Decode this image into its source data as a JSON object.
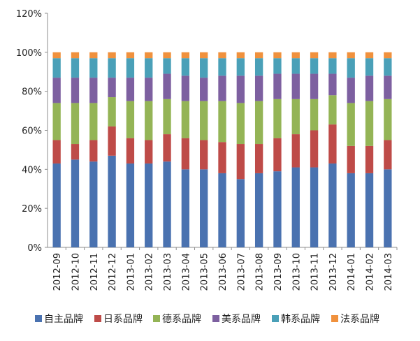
{
  "chart_data": {
    "type": "bar",
    "stacked": true,
    "percent": true,
    "categories": [
      "2012-09",
      "2012-10",
      "2012-11",
      "2012-12",
      "2013-01",
      "2013-02",
      "2013-03",
      "2013-04",
      "2013-05",
      "2013-06",
      "2013-07",
      "2013-08",
      "2013-09",
      "2013-10",
      "2013-11",
      "2013-12",
      "2014-01",
      "2014-02",
      "2014-03"
    ],
    "series": [
      {
        "name": "自主品牌",
        "color": "#4a72b0",
        "values": [
          43,
          45,
          44,
          47,
          43,
          43,
          44,
          40,
          40,
          38,
          35,
          38,
          39,
          41,
          41,
          43,
          38,
          38,
          40
        ]
      },
      {
        "name": "日系品牌",
        "color": "#be4b48",
        "values": [
          12,
          8,
          11,
          15,
          13,
          12,
          14,
          16,
          15,
          16,
          18,
          15,
          17,
          17,
          19,
          20,
          14,
          14,
          15
        ]
      },
      {
        "name": "德系品牌",
        "color": "#94b456",
        "values": [
          19,
          21,
          19,
          15,
          19,
          20,
          18,
          19,
          20,
          21,
          21,
          22,
          20,
          18,
          16,
          15,
          22,
          23,
          21
        ]
      },
      {
        "name": "美系品牌",
        "color": "#7d60a0",
        "values": [
          13,
          13,
          13,
          10,
          12,
          12,
          13,
          13,
          12,
          13,
          14,
          13,
          13,
          13,
          13,
          11,
          13,
          13,
          12
        ]
      },
      {
        "name": "韩系品牌",
        "color": "#4aa0b8",
        "values": [
          10,
          10,
          10,
          10,
          10,
          10,
          8,
          9,
          10,
          9,
          9,
          9,
          8,
          8,
          8,
          8,
          10,
          9,
          9
        ]
      },
      {
        "name": "法系品牌",
        "color": "#f0913d",
        "values": [
          3,
          3,
          3,
          3,
          3,
          3,
          3,
          3,
          3,
          3,
          3,
          3,
          3,
          3,
          3,
          3,
          3,
          3,
          3
        ]
      }
    ],
    "y_ticks": [
      "0%",
      "20%",
      "40%",
      "60%",
      "80%",
      "100%",
      "120%"
    ],
    "ylim": [
      0,
      120
    ],
    "grid": false,
    "legend_position": "bottom"
  }
}
